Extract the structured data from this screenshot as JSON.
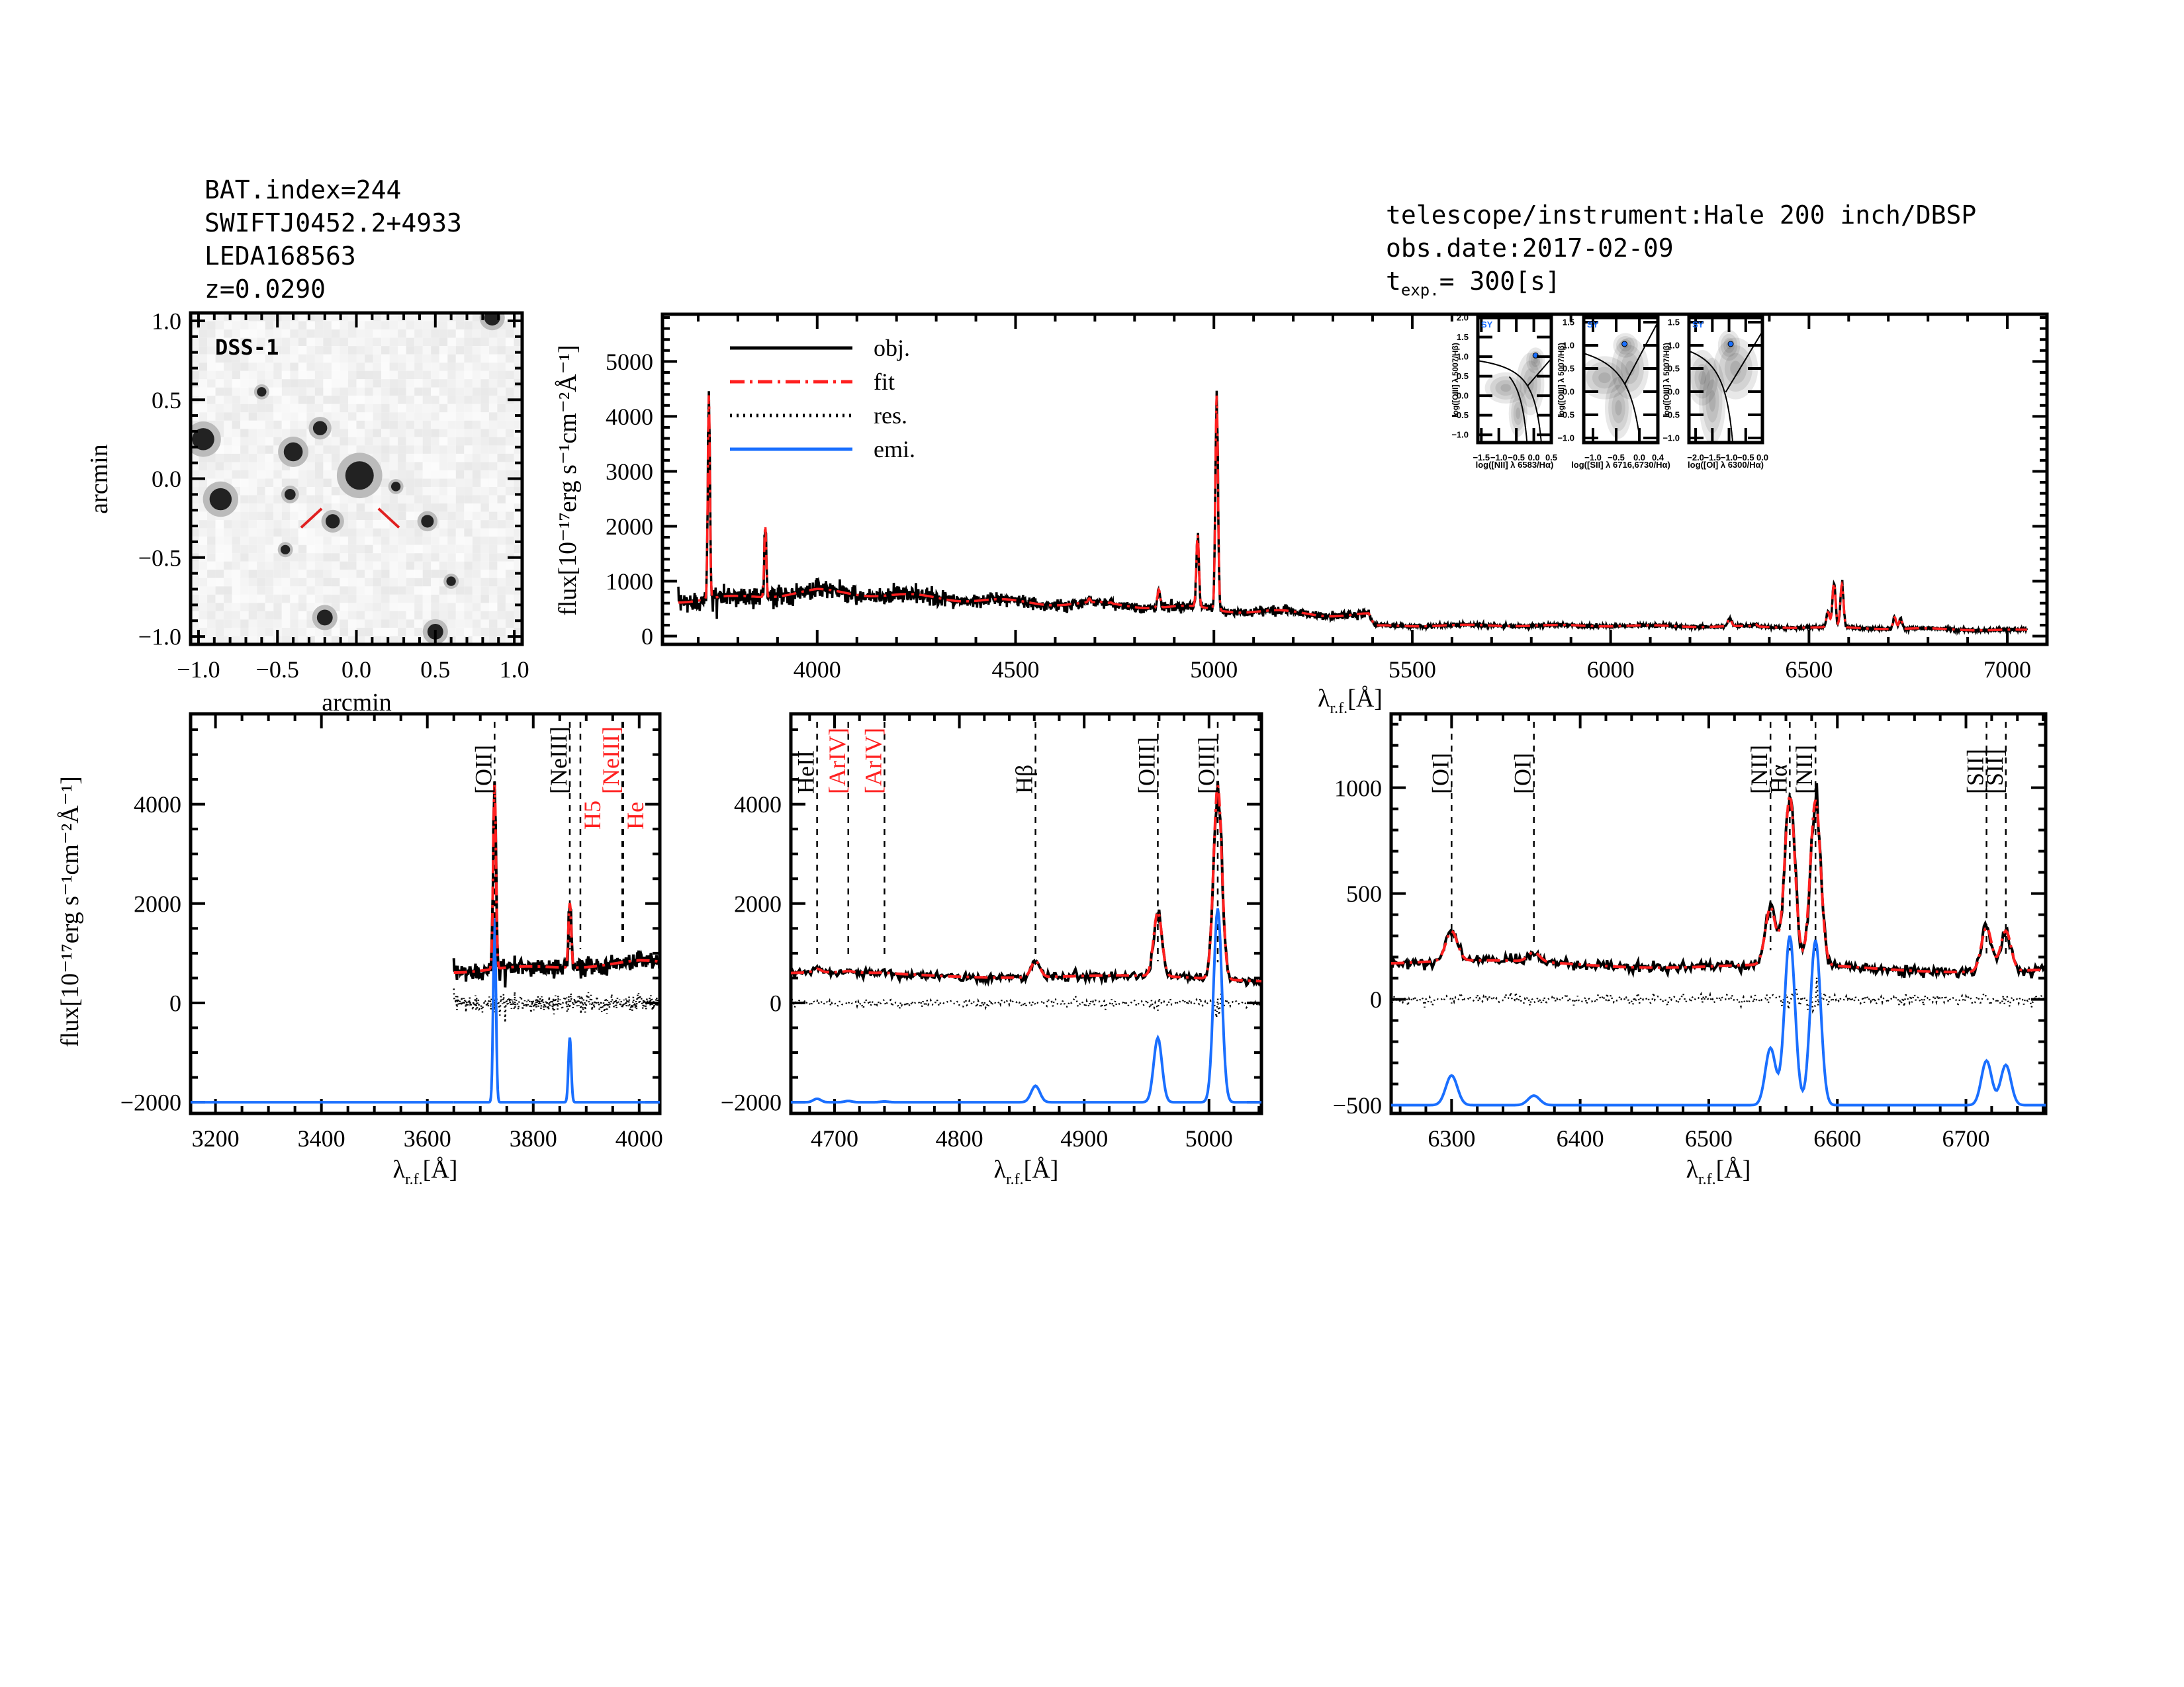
{
  "header_left": [
    "BAT.index=244",
    "SWIFTJ0452.2+4933",
    "LEDA168563",
    "z=0.0290"
  ],
  "header_right": {
    "instrument": "telescope/instrument:Hale 200 inch/DBSP",
    "obs_date": "obs.date:2017-02-09",
    "texp_t": "t",
    "texp_sub": "exp.",
    "texp_value": "= 300[s]"
  },
  "colors": {
    "obj": "#000000",
    "fit": "#ff2020",
    "res": "#000000",
    "emi": "#1a6fff",
    "sy": "#1a6fff"
  },
  "chart_data": {
    "type": "line",
    "model": {
      "continuum": [
        [
          3650,
          650
        ],
        [
          3800,
          700
        ],
        [
          3900,
          760
        ],
        [
          4000,
          820
        ],
        [
          4100,
          780
        ],
        [
          4300,
          700
        ],
        [
          4500,
          620
        ],
        [
          4800,
          560
        ],
        [
          5000,
          490
        ],
        [
          5200,
          420
        ],
        [
          5390,
          380
        ],
        [
          5405,
          185
        ],
        [
          5600,
          195
        ],
        [
          6000,
          190
        ],
        [
          6300,
          175
        ],
        [
          6600,
          150
        ],
        [
          7050,
          105
        ]
      ],
      "noise_rms": [
        [
          3650,
          130
        ],
        [
          4200,
          90
        ],
        [
          4600,
          60
        ],
        [
          5400,
          45
        ],
        [
          5410,
          20
        ],
        [
          7050,
          15
        ]
      ],
      "lines": [
        {
          "name": "[OII]",
          "wave": 3727,
          "amp": 3700,
          "sigma": 2.6
        },
        {
          "name": "[NeIII]",
          "wave": 3869,
          "amp": 1300,
          "sigma": 2.6
        },
        {
          "name": "HeII",
          "wave": 4686,
          "amp": 70,
          "sigma": 3
        },
        {
          "name": "[ArIV]",
          "wave": 4711,
          "amp": 25,
          "sigma": 3
        },
        {
          "name": "[ArIV]",
          "wave": 4740,
          "amp": 15,
          "sigma": 3
        },
        {
          "name": "Hβ",
          "wave": 4861,
          "amp": 330,
          "sigma": 3.5
        },
        {
          "name": "[OIII]",
          "wave": 4959,
          "amp": 1300,
          "sigma": 3.3
        },
        {
          "name": "[OIII]",
          "wave": 5007,
          "amp": 3900,
          "sigma": 3.3
        },
        {
          "name": "[OI]",
          "wave": 6300,
          "amp": 140,
          "sigma": 4.5
        },
        {
          "name": "[OI]",
          "wave": 6364,
          "amp": 45,
          "sigma": 4.5
        },
        {
          "name": "[NII]",
          "wave": 6548,
          "amp": 270,
          "sigma": 4
        },
        {
          "name": "Hα",
          "wave": 6563,
          "amp": 800,
          "sigma": 4
        },
        {
          "name": "[NII]",
          "wave": 6583,
          "amp": 780,
          "sigma": 4
        },
        {
          "name": "[SII]",
          "wave": 6716,
          "amp": 210,
          "sigma": 4
        },
        {
          "name": "[SII]",
          "wave": 6731,
          "amp": 190,
          "sigma": 4
        }
      ]
    },
    "main": {
      "xlim": [
        3610,
        7100
      ],
      "ylim": [
        -150,
        5860
      ],
      "xticks": [
        "4000",
        "4500",
        "5000",
        "5500",
        "6000",
        "6500",
        "7000"
      ],
      "yticks": [
        "0",
        "1000",
        "2000",
        "3000",
        "4000",
        "5000"
      ],
      "xlabel": "λ",
      "xlabel_sub": "r.f.",
      "xlabel_unit": "[Å]",
      "ylabel": "flux[10⁻¹⁷erg s⁻¹cm⁻²Å⁻¹]",
      "data_range": [
        3650,
        7050
      ],
      "legend": [
        "obj.",
        "fit",
        "res.",
        "emi."
      ],
      "legend_placement": "top-left"
    },
    "panels": [
      {
        "xlim": [
          3153,
          4039
        ],
        "ylim": [
          -2225,
          5820
        ],
        "data_range": [
          3650,
          4039
        ],
        "emi_offset": -2000,
        "xticks": [
          "3200",
          "3400",
          "3600",
          "3800",
          "4000"
        ],
        "yticks": [
          "-2000",
          "0",
          "2000",
          "4000"
        ],
        "ylabel": "flux[10⁻¹⁷erg s⁻¹cm⁻²Å⁻¹]",
        "markers": [
          {
            "label": "[OII]",
            "wave": 3727,
            "color": "#000000"
          },
          {
            "label": "[NeIII]",
            "wave": 3869,
            "color": "#000000"
          },
          {
            "label": "H5",
            "wave": 3889,
            "color": "#ff2020"
          },
          {
            "label": "[NeIII]",
            "wave": 3968,
            "color": "#ff2020"
          },
          {
            "label": "He",
            "wave": 3970,
            "color": "#ff2020"
          }
        ]
      },
      {
        "xlim": [
          4665,
          5042
        ],
        "ylim": [
          -2225,
          5820
        ],
        "data_range": [
          4665,
          5042
        ],
        "emi_offset": -2000,
        "xticks": [
          "4700",
          "4800",
          "4900",
          "5000"
        ],
        "yticks": [
          "-2000",
          "0",
          "2000",
          "4000"
        ],
        "markers": [
          {
            "label": "HeII",
            "wave": 4686,
            "color": "#000000"
          },
          {
            "label": "[ArIV]",
            "wave": 4711,
            "color": "#ff2020"
          },
          {
            "label": "[ArIV]",
            "wave": 4740,
            "color": "#ff2020"
          },
          {
            "label": "Hβ",
            "wave": 4861,
            "color": "#000000"
          },
          {
            "label": "[OIII]",
            "wave": 4959,
            "color": "#000000"
          },
          {
            "label": "[OIII]",
            "wave": 5007,
            "color": "#000000"
          }
        ]
      },
      {
        "xlim": [
          6253,
          6762
        ],
        "ylim": [
          -539,
          1349
        ],
        "data_range": [
          6253,
          6762
        ],
        "emi_offset": -500,
        "xticks": [
          "6300",
          "6400",
          "6500",
          "6600",
          "6700"
        ],
        "yticks": [
          "-500",
          "0",
          "500",
          "1000"
        ],
        "markers": [
          {
            "label": "[OI]",
            "wave": 6300,
            "color": "#000000"
          },
          {
            "label": "[OI]",
            "wave": 6364,
            "color": "#000000"
          },
          {
            "label": "[NII]",
            "wave": 6548,
            "color": "#000000"
          },
          {
            "label": "Hα",
            "wave": 6563,
            "color": "#000000"
          },
          {
            "label": "[NII]",
            "wave": 6583,
            "color": "#000000"
          },
          {
            "label": "[SII]",
            "wave": 6716,
            "color": "#000000"
          },
          {
            "label": "[SII]",
            "wave": 6731,
            "color": "#000000"
          }
        ]
      }
    ],
    "dss": {
      "label": "DSS-1",
      "xlim": [
        -1.05,
        1.05
      ],
      "ylim": [
        -1.05,
        1.05
      ],
      "ticks": [
        "-1.0",
        "-0.5",
        "0.0",
        "0.5",
        "1.0"
      ],
      "xlabel": "arcmin",
      "ylabel": "arcmin",
      "stars": [
        [
          -0.97,
          0.25,
          0.07
        ],
        [
          -0.86,
          -0.13,
          0.07
        ],
        [
          -0.4,
          0.17,
          0.06
        ],
        [
          -0.23,
          0.32,
          0.045
        ],
        [
          0.02,
          0.02,
          0.09
        ],
        [
          -0.42,
          -0.1,
          0.035
        ],
        [
          -0.15,
          -0.27,
          0.045
        ],
        [
          0.45,
          -0.27,
          0.04
        ],
        [
          0.5,
          -0.97,
          0.05
        ],
        [
          -0.2,
          -0.88,
          0.05
        ],
        [
          0.86,
          1.02,
          0.05
        ],
        [
          0.6,
          -0.65,
          0.03
        ],
        [
          -0.45,
          -0.45,
          0.03
        ],
        [
          0.25,
          -0.05,
          0.03
        ],
        [
          -0.6,
          0.55,
          0.03
        ]
      ]
    },
    "bpt": [
      {
        "xlim": [
          -1.6,
          0.5
        ],
        "ylim": [
          -1.2,
          2.0
        ],
        "xticks": [
          "-1.5",
          "-1.0",
          "-0.5",
          "0.0",
          "0.5"
        ],
        "yticks": [
          "-1.0",
          "-0.5",
          "0.0",
          "0.5",
          "1.0",
          "1.5",
          "2.0"
        ],
        "xlabel": "log([NII] λ 6583/Hα)",
        "ylabel": "log([OIII] λ 5007/Hβ)",
        "class": "SY",
        "point": [
          0.05,
          1.03
        ],
        "density": [
          [
            -0.45,
            -0.45,
            0.2,
            0.45
          ],
          [
            -0.8,
            0.2,
            0.45,
            0.3
          ],
          [
            -0.1,
            0.3,
            0.3,
            0.6
          ],
          [
            0.05,
            0.9,
            0.2,
            0.25
          ]
        ]
      },
      {
        "xlim": [
          -1.2,
          0.4
        ],
        "ylim": [
          -1.1,
          1.6
        ],
        "xticks": [
          "-1.0",
          "-0.5",
          "0.0",
          "0.4"
        ],
        "yticks": [
          "-1.0",
          "-0.5",
          "0.0",
          "0.5",
          "1.0",
          "1.5"
        ],
        "xlabel": "log([SII] λ 6716,6730/Hα)",
        "ylabel": "log([OIII] λ 5007/Hβ)",
        "class": "SY",
        "point": [
          -0.32,
          1.03
        ],
        "density": [
          [
            -0.45,
            -0.35,
            0.22,
            0.5
          ],
          [
            -0.75,
            0.3,
            0.4,
            0.35
          ],
          [
            -0.2,
            0.5,
            0.3,
            0.5
          ],
          [
            -0.3,
            1.0,
            0.2,
            0.2
          ]
        ]
      },
      {
        "xlim": [
          -2.2,
          0.0
        ],
        "ylim": [
          -1.1,
          1.6
        ],
        "xticks": [
          "-2.0",
          "-1.5",
          "-1.0",
          "-0.5",
          "0.0"
        ],
        "yticks": [
          "-1.0",
          "-0.5",
          "0.0",
          "0.5",
          "1.0",
          "1.5"
        ],
        "xlabel": "log([OI] λ 6300/Hα)",
        "ylabel": "log([OIII] λ 5007/Hβ)",
        "class": "SY",
        "point": [
          -0.95,
          1.03
        ],
        "density": [
          [
            -1.5,
            -0.2,
            0.3,
            0.7
          ],
          [
            -1.8,
            0.3,
            0.35,
            0.45
          ],
          [
            -0.8,
            0.5,
            0.5,
            0.5
          ],
          [
            -1.0,
            1.0,
            0.25,
            0.25
          ]
        ]
      }
    ]
  }
}
